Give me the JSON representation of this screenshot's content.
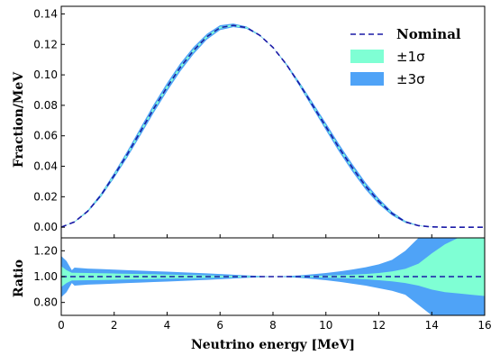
{
  "chart_data": [
    {
      "type": "area",
      "panel": "main",
      "xlabel": "",
      "ylabel": "Fraction/MeV",
      "xlim": [
        0,
        16
      ],
      "ylim": [
        -0.007,
        0.145
      ],
      "xticks": [
        0,
        2,
        4,
        6,
        8,
        10,
        12,
        14,
        16
      ],
      "yticks": [
        "0.00",
        "0.02",
        "0.04",
        "0.06",
        "0.08",
        "0.10",
        "0.12",
        "0.14"
      ],
      "x": [
        0,
        0.5,
        1,
        1.5,
        2,
        2.5,
        3,
        3.5,
        4,
        4.5,
        5,
        5.5,
        6,
        6.5,
        7,
        7.5,
        8,
        8.5,
        9,
        9.5,
        10,
        10.5,
        11,
        11.5,
        12,
        12.5,
        13,
        13.5,
        14,
        14.5,
        15,
        15.5,
        16
      ],
      "series": [
        {
          "name": "Nominal",
          "style": "dashed",
          "color": "#1a1aa6",
          "values": [
            0.0,
            0.0035,
            0.0105,
            0.021,
            0.034,
            0.048,
            0.063,
            0.078,
            0.092,
            0.105,
            0.116,
            0.125,
            0.131,
            0.1325,
            0.131,
            0.126,
            0.118,
            0.107,
            0.094,
            0.08,
            0.066,
            0.052,
            0.039,
            0.027,
            0.017,
            0.009,
            0.0035,
            0.001,
            0.0002,
            0.0,
            0.0,
            0.0,
            0.0
          ]
        },
        {
          "name": "±1σ",
          "color": "#7fffd4",
          "relative_half_width": [
            0.12,
            0.04,
            0.03,
            0.025,
            0.02,
            0.018,
            0.016,
            0.014,
            0.012,
            0.01,
            0.008,
            0.006,
            0.005,
            0.004,
            0.003,
            0.001,
            0.0,
            0.002,
            0.005,
            0.008,
            0.012,
            0.016,
            0.02,
            0.026,
            0.034,
            0.045,
            0.06,
            0.09,
            0.15,
            0.2,
            0.2,
            0.2,
            0.2
          ]
        },
        {
          "name": "±3σ",
          "color": "#4fa3f7",
          "relative_half_width": [
            0.15,
            0.07,
            0.06,
            0.055,
            0.05,
            0.045,
            0.04,
            0.035,
            0.03,
            0.025,
            0.02,
            0.015,
            0.012,
            0.009,
            0.006,
            0.003,
            0.0,
            0.006,
            0.014,
            0.024,
            0.035,
            0.048,
            0.064,
            0.085,
            0.11,
            0.14,
            0.18,
            0.24,
            0.3,
            0.35,
            0.4,
            0.45,
            0.5
          ]
        }
      ],
      "legend": {
        "position": "top-right",
        "entries": [
          "Nominal",
          "±1σ",
          "±3σ"
        ]
      }
    },
    {
      "type": "area",
      "panel": "ratio",
      "xlabel": "Neutrino energy [MeV]",
      "ylabel": "Ratio",
      "xlim": [
        0,
        16
      ],
      "ylim": [
        0.7,
        1.3
      ],
      "xticks": [
        0,
        2,
        4,
        6,
        8,
        10,
        12,
        14,
        16
      ],
      "yticks": [
        "0.80",
        "1.00",
        "1.20"
      ],
      "x": [
        0,
        0.2,
        0.4,
        0.5,
        1,
        1.5,
        2,
        2.5,
        3,
        3.5,
        4,
        4.5,
        5,
        5.5,
        6,
        6.5,
        7,
        7.5,
        8,
        8.5,
        9,
        9.5,
        10,
        10.5,
        11,
        11.5,
        12,
        12.5,
        13,
        13.5,
        14,
        14.5,
        15,
        15.5,
        16
      ],
      "series": [
        {
          "name": "Nominal",
          "style": "dashed",
          "color": "#1a1aa6",
          "values": [
            1,
            1,
            1,
            1,
            1,
            1,
            1,
            1,
            1,
            1,
            1,
            1,
            1,
            1,
            1,
            1,
            1,
            1,
            1,
            1,
            1,
            1,
            1,
            1,
            1,
            1,
            1,
            1,
            1,
            1,
            1,
            1,
            1,
            1,
            1
          ]
        },
        {
          "name": "±1σ",
          "color": "#7fffd4",
          "upper": [
            1.08,
            1.05,
            1.03,
            1.03,
            1.028,
            1.026,
            1.024,
            1.022,
            1.02,
            1.018,
            1.016,
            1.014,
            1.012,
            1.01,
            1.008,
            1.006,
            1.004,
            1.002,
            1.0,
            1.001,
            1.003,
            1.005,
            1.008,
            1.011,
            1.015,
            1.02,
            1.028,
            1.04,
            1.06,
            1.1,
            1.18,
            1.25,
            1.3,
            1.3,
            1.3
          ],
          "lower": [
            0.92,
            0.95,
            0.97,
            0.97,
            0.972,
            0.974,
            0.976,
            0.978,
            0.98,
            0.982,
            0.984,
            0.986,
            0.988,
            0.99,
            0.992,
            0.994,
            0.996,
            0.998,
            1.0,
            0.999,
            0.997,
            0.995,
            0.992,
            0.989,
            0.985,
            0.98,
            0.972,
            0.963,
            0.95,
            0.93,
            0.9,
            0.88,
            0.87,
            0.86,
            0.85
          ]
        },
        {
          "name": "±3σ",
          "color": "#4fa3f7",
          "upper": [
            1.16,
            1.12,
            1.05,
            1.07,
            1.062,
            1.058,
            1.054,
            1.05,
            1.046,
            1.042,
            1.038,
            1.034,
            1.03,
            1.025,
            1.02,
            1.015,
            1.01,
            1.005,
            1.0,
            1.004,
            1.01,
            1.018,
            1.028,
            1.04,
            1.055,
            1.072,
            1.095,
            1.13,
            1.2,
            1.3,
            1.3,
            1.3,
            1.3,
            1.3,
            1.3
          ],
          "lower": [
            0.84,
            0.88,
            0.95,
            0.93,
            0.938,
            0.942,
            0.946,
            0.95,
            0.954,
            0.958,
            0.962,
            0.966,
            0.97,
            0.975,
            0.98,
            0.985,
            0.99,
            0.995,
            1.0,
            0.996,
            0.99,
            0.982,
            0.972,
            0.96,
            0.945,
            0.93,
            0.91,
            0.89,
            0.86,
            0.78,
            0.7,
            0.7,
            0.7,
            0.7,
            0.7
          ]
        }
      ]
    }
  ]
}
